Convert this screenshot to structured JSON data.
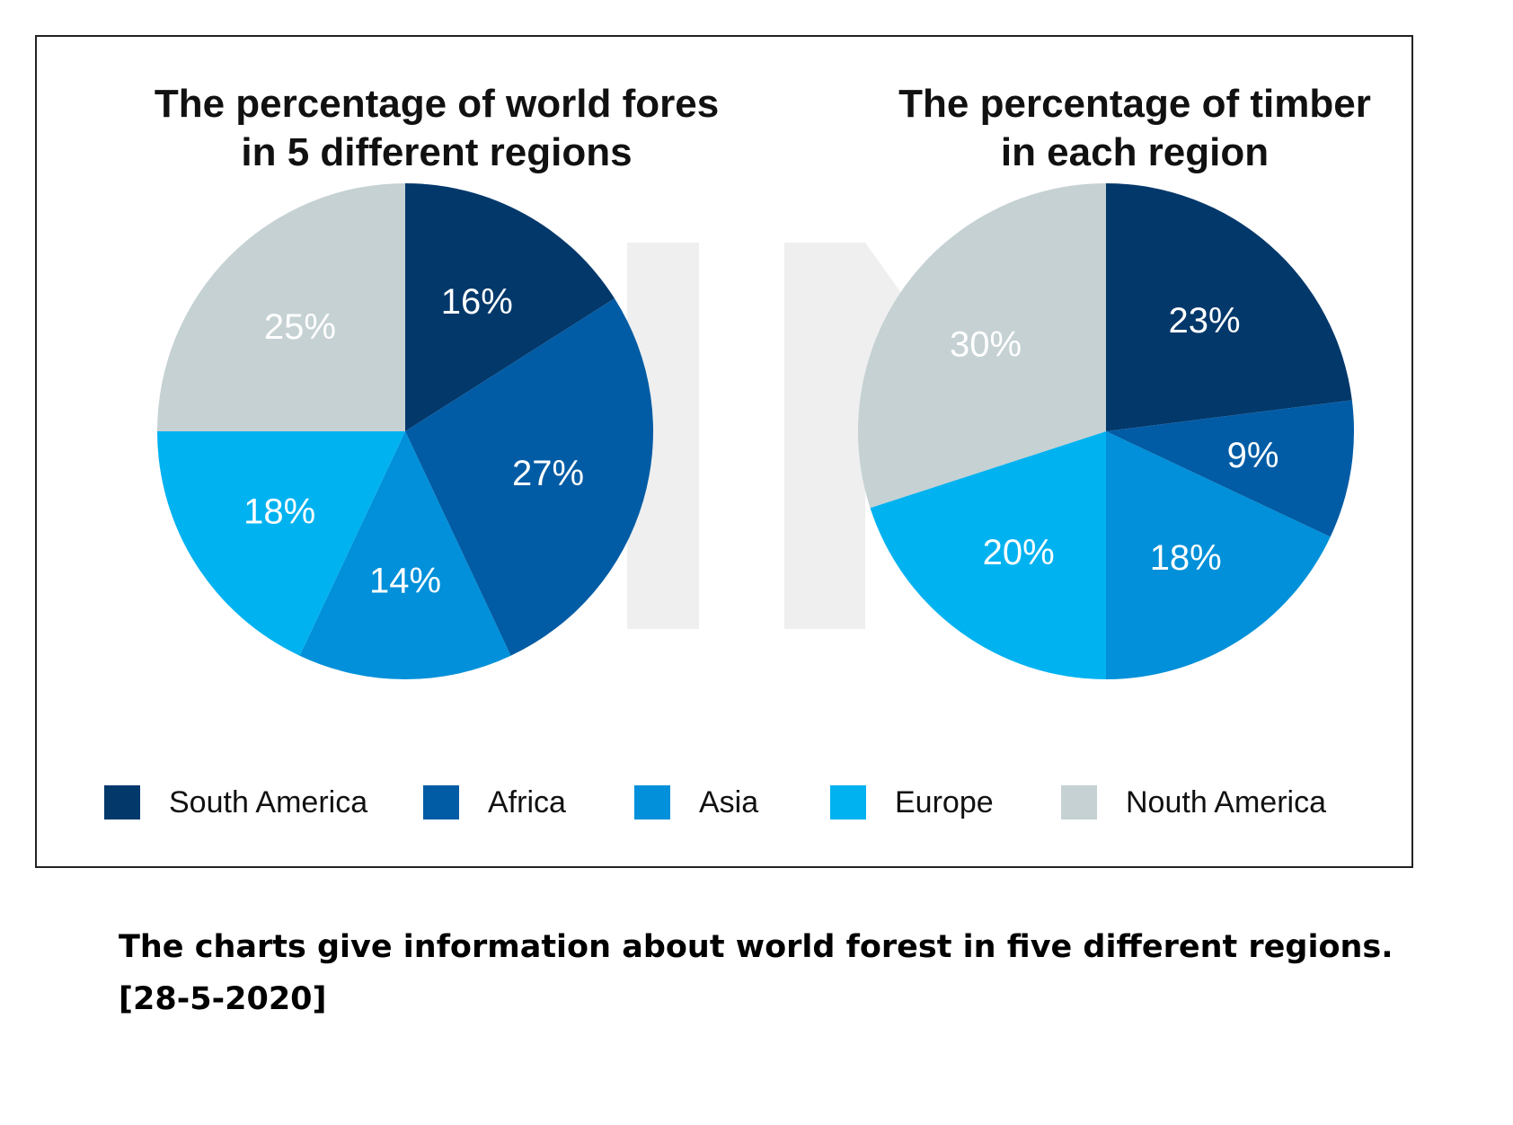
{
  "colors": {
    "south_america": "#03386b",
    "africa": "#025ca5",
    "asia": "#0190d9",
    "europe": "#00b2f0",
    "north_america": "#c5d1d3"
  },
  "chart_data": [
    {
      "type": "pie",
      "title_lines": [
        "The percentage of world fores",
        "in 5 different regions"
      ],
      "slices": [
        {
          "label": "South America",
          "value": 16,
          "display": "16%",
          "color": "#03386b"
        },
        {
          "label": "Africa",
          "value": 27,
          "display": "27%",
          "color": "#025ca5"
        },
        {
          "label": "Asia",
          "value": 14,
          "display": "14%",
          "color": "#0190d9"
        },
        {
          "label": "Europe",
          "value": 18,
          "display": "18%",
          "color": "#00b2f0"
        },
        {
          "label": "Nouth America",
          "value": 25,
          "display": "25%",
          "color": "#c5d1d3"
        }
      ]
    },
    {
      "type": "pie",
      "title_lines": [
        "The percentage of timber",
        "in each region"
      ],
      "slices": [
        {
          "label": "South America",
          "value": 23,
          "display": "23%",
          "color": "#03386b"
        },
        {
          "label": "Africa",
          "value": 9,
          "display": "9%",
          "color": "#025ca5"
        },
        {
          "label": "Asia",
          "value": 18,
          "display": "18%",
          "color": "#0190d9"
        },
        {
          "label": "Europe",
          "value": 20,
          "display": "20%",
          "color": "#00b2f0"
        },
        {
          "label": "Nouth America",
          "value": 30,
          "display": "30%",
          "color": "#c5d1d3"
        }
      ]
    }
  ],
  "legend": [
    {
      "label": "South America",
      "color": "#03386b"
    },
    {
      "label": "Africa",
      "color": "#025ca5"
    },
    {
      "label": "Asia",
      "color": "#0190d9"
    },
    {
      "label": "Europe",
      "color": "#00b2f0"
    },
    {
      "label": "Nouth America",
      "color": "#c5d1d3"
    }
  ],
  "caption": {
    "line1": "The charts give information about world forest in five different regions.",
    "line2": "[28-5-2020]"
  }
}
